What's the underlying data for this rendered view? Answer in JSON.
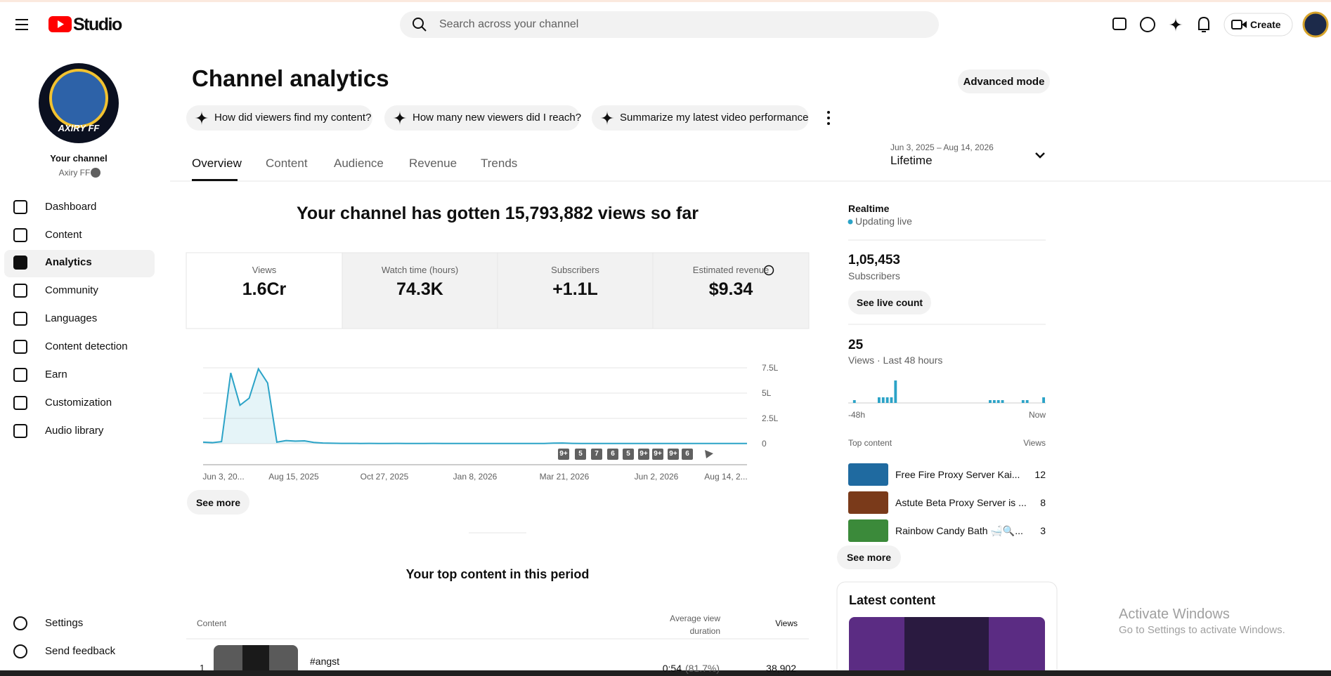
{
  "header": {
    "logo": "Studio",
    "search_placeholder": "Search across your channel",
    "create": "Create"
  },
  "sidebar": {
    "avatar_text": "AXIRY FF",
    "channel_label": "Your channel",
    "channel_name": "Axiry FF",
    "nav": [
      "Dashboard",
      "Content",
      "Analytics",
      "Community",
      "Languages",
      "Content detection",
      "Earn",
      "Customization",
      "Audio library"
    ],
    "bottom": [
      "Settings",
      "Send feedback"
    ]
  },
  "page": {
    "title": "Channel analytics",
    "advanced": "Advanced mode",
    "prompts": [
      "How did viewers find my content?",
      "How many new viewers did I reach?",
      "Summarize my latest video performance"
    ],
    "tabs": [
      "Overview",
      "Content",
      "Audience",
      "Revenue",
      "Trends"
    ],
    "date_range": "Jun 3, 2025 – Aug 14, 2026",
    "period": "Lifetime"
  },
  "overview": {
    "headline": "Your channel has gotten 15,793,882 views so far",
    "metrics": [
      {
        "label": "Views",
        "value": "1.6Cr"
      },
      {
        "label": "Watch time (hours)",
        "value": "74.3K"
      },
      {
        "label": "Subscribers",
        "value": "+1.1L"
      },
      {
        "label": "Estimated revenue",
        "value": "$9.34"
      }
    ],
    "chart": {
      "type": "line",
      "color": "#2ba3c7",
      "values": [
        15000,
        10000,
        20000,
        700000,
        380000,
        450000,
        740000,
        600000,
        15000,
        30000,
        25000,
        28000,
        12000,
        6000,
        4000,
        3000,
        3000,
        2000,
        3000,
        2000,
        2000,
        3000,
        2000,
        2000,
        2000,
        3000,
        2000,
        2000,
        2000,
        2000,
        2000,
        2000,
        2000,
        2000,
        2000,
        2000,
        2000,
        2000,
        5000,
        6000,
        3000,
        2000,
        2000,
        2000,
        2000,
        2000,
        2000,
        2000,
        2000,
        2000,
        2000,
        2000,
        2000,
        2000,
        2000,
        2000,
        2000,
        2000,
        2000,
        2000
      ],
      "ylim": [
        0,
        750000
      ],
      "yticks": [
        0,
        {
          "value": 250000,
          "label": "2.5L"
        },
        {
          "value": 500000,
          "label": "5L"
        },
        {
          "value": 750000,
          "label": "7.5L"
        }
      ],
      "grid": true,
      "x_labels": [
        "Jun 3, 20...",
        "Aug 15, 2025",
        "Oct 27, 2025",
        "Jan 8, 2026",
        "Mar 21, 2026",
        "Jun 2, 2026",
        "Aug 14, 2..."
      ],
      "badges": [
        "9+",
        "5",
        "7",
        "6",
        "5",
        "9+",
        "9+",
        "9+",
        "6"
      ]
    },
    "see_more": "See more"
  },
  "top_content": {
    "title": "Your top content in this period",
    "columns": [
      "Content",
      "Average view duration",
      "Views"
    ],
    "rows": [
      {
        "rank": "1",
        "title": "#angst",
        "duration": "0:54",
        "percent": "(81.7%)",
        "views": "38,902"
      }
    ]
  },
  "realtime": {
    "title": "Realtime",
    "status": "Updating live",
    "subscribers": "1,05,453",
    "subscribers_label": "Subscribers",
    "live_button": "See live count",
    "views": "25",
    "views_label": "Views · Last 48 hours",
    "chart": {
      "type": "bar",
      "color": "#2ba3c7",
      "ylim": [
        0,
        8
      ],
      "values": [
        0,
        1,
        0,
        0,
        0,
        0,
        0,
        2,
        2,
        2,
        2,
        8,
        0,
        0,
        0,
        0,
        0,
        0,
        0,
        0,
        0,
        0,
        0,
        0,
        0,
        0,
        0,
        0,
        0,
        0,
        0,
        0,
        0,
        0,
        1,
        1,
        1,
        1,
        0,
        0,
        0,
        0,
        1,
        1,
        0,
        0,
        0,
        2
      ]
    },
    "axis_start": "-48h",
    "axis_end": "Now",
    "top_content_label": "Top content",
    "views_column": "Views",
    "items": [
      {
        "title": "Free Fire Proxy Server Kai...",
        "views": "12"
      },
      {
        "title": "Astute Beta Proxy Server is ...",
        "views": "8"
      },
      {
        "title": "Rainbow Candy Bath 🛁🔍...",
        "views": "3"
      }
    ],
    "see_more": "See more"
  },
  "latest": {
    "title": "Latest content"
  },
  "watermark": {
    "line1": "Activate Windows",
    "line2": "Go to Settings to activate Windows."
  }
}
